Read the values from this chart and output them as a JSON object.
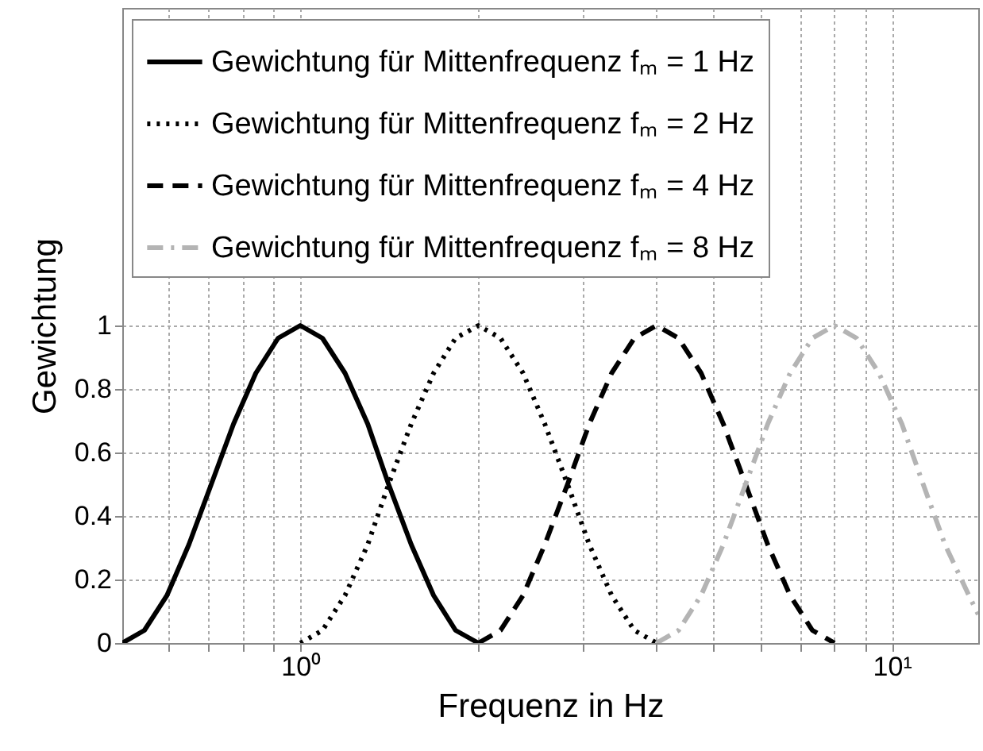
{
  "chart_data": {
    "type": "line",
    "xlabel": "Frequenz in Hz",
    "ylabel": "Gewichtung",
    "log": "x",
    "xlim": [
      0.5,
      14
    ],
    "ylim": [
      0,
      2
    ],
    "xticks": [
      {
        "value": 0.6,
        "label": null
      },
      {
        "value": 0.7,
        "label": null
      },
      {
        "value": 0.8,
        "label": null
      },
      {
        "value": 0.9,
        "label": null
      },
      {
        "value": 1,
        "label": "10⁰"
      },
      {
        "value": 2,
        "label": null
      },
      {
        "value": 3,
        "label": null
      },
      {
        "value": 4,
        "label": null
      },
      {
        "value": 5,
        "label": null
      },
      {
        "value": 6,
        "label": null
      },
      {
        "value": 7,
        "label": null
      },
      {
        "value": 8,
        "label": null
      },
      {
        "value": 9,
        "label": null
      },
      {
        "value": 10,
        "label": "10¹"
      }
    ],
    "yticks": [
      0,
      0.2,
      0.4,
      0.6,
      0.8,
      1
    ],
    "grid": true,
    "legend": "top left",
    "series": [
      {
        "name": "Gewichtung für Mittenfrequenz fₘ = 1 Hz",
        "color": "#000000",
        "line_style": "solid",
        "x": [
          0.5,
          0.545,
          0.595,
          0.648,
          0.707,
          0.771,
          0.841,
          0.917,
          1,
          1.09,
          1.19,
          1.3,
          1.41,
          1.54,
          1.68,
          1.83,
          2
        ],
        "values": [
          0,
          0.04,
          0.15,
          0.31,
          0.5,
          0.69,
          0.85,
          0.96,
          1,
          0.96,
          0.85,
          0.69,
          0.5,
          0.31,
          0.15,
          0.04,
          0
        ]
      },
      {
        "name": "Gewichtung für Mittenfrequenz fₘ = 2 Hz",
        "color": "#000000",
        "line_style": "dotted",
        "x": [
          1,
          1.09,
          1.19,
          1.3,
          1.41,
          1.54,
          1.68,
          1.83,
          2,
          2.18,
          2.38,
          2.59,
          2.83,
          3.08,
          3.36,
          3.67,
          4
        ],
        "values": [
          0,
          0.04,
          0.15,
          0.31,
          0.5,
          0.69,
          0.85,
          0.96,
          1,
          0.96,
          0.85,
          0.69,
          0.5,
          0.31,
          0.15,
          0.04,
          0
        ]
      },
      {
        "name": "Gewichtung für Mittenfrequenz fₘ = 4 Hz",
        "color": "#000000",
        "line_style": "dashed",
        "x": [
          2,
          2.18,
          2.38,
          2.59,
          2.83,
          3.08,
          3.36,
          3.67,
          4,
          4.36,
          4.76,
          5.19,
          5.66,
          6.17,
          6.73,
          7.34,
          8
        ],
        "values": [
          0,
          0.04,
          0.15,
          0.31,
          0.5,
          0.69,
          0.85,
          0.96,
          1,
          0.96,
          0.85,
          0.69,
          0.5,
          0.31,
          0.15,
          0.04,
          0
        ]
      },
      {
        "name": "Gewichtung für Mittenfrequenz fₘ = 8 Hz",
        "color": "#b4b4b4",
        "line_style": "dashdot",
        "x": [
          4,
          4.36,
          4.76,
          5.19,
          5.66,
          6.17,
          6.73,
          7.34,
          8,
          8.72,
          9.51,
          10.4,
          11.3,
          12.3,
          13.5,
          14
        ],
        "values": [
          0,
          0.04,
          0.15,
          0.31,
          0.5,
          0.69,
          0.85,
          0.96,
          1,
          0.96,
          0.85,
          0.69,
          0.5,
          0.31,
          0.15,
          0.09
        ]
      }
    ]
  }
}
